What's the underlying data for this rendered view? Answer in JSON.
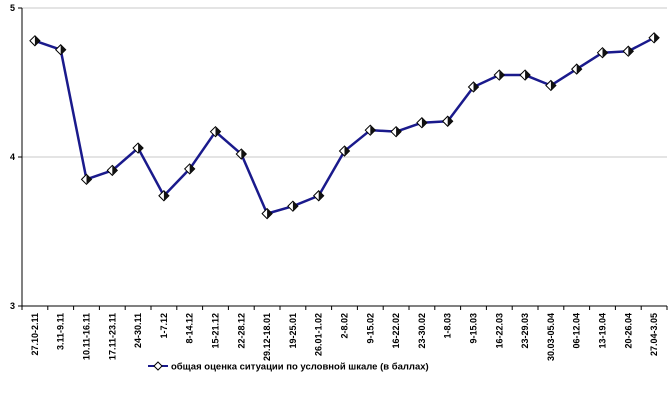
{
  "chart_data": {
    "type": "line",
    "title": "",
    "xlabel": "",
    "ylabel": "",
    "ylim": [
      3,
      5
    ],
    "yticks": [
      "3",
      "4",
      "5"
    ],
    "grid": "horizontal",
    "legend_position": "bottom",
    "colors": {
      "line": "#1a1a8c",
      "marker_fill": "#ffffff",
      "marker_stroke": "#000000",
      "grid": "#c8c8c8"
    },
    "categories": [
      "27.10-2.11",
      "3.11-9.11",
      "10.11-16.11",
      "17.11-23.11",
      "24-30.11",
      "1-7.12",
      "8-14.12",
      "15-21.12",
      "22-28.12",
      "29.12-18.01",
      "19-25.01",
      "26.01-1.02",
      "2-8.02",
      "9-15.02",
      "16-22.02",
      "23-30.02",
      "1-8.03",
      "9-15.03",
      "16-22.03",
      "23-29.03",
      "30.03-05.04",
      "06-12.04",
      "13-19.04",
      "20-26.04",
      "27.04-3.05"
    ],
    "series": [
      {
        "name": "общая оценка ситуации по условной шкале (в баллах)",
        "marker": "diamond",
        "values": [
          4.78,
          4.72,
          3.85,
          3.91,
          4.06,
          3.74,
          3.92,
          4.17,
          4.02,
          3.62,
          3.67,
          3.74,
          4.04,
          4.18,
          4.17,
          4.23,
          4.24,
          4.47,
          4.55,
          4.55,
          4.48,
          4.59,
          4.7,
          4.71,
          4.8
        ]
      }
    ]
  }
}
